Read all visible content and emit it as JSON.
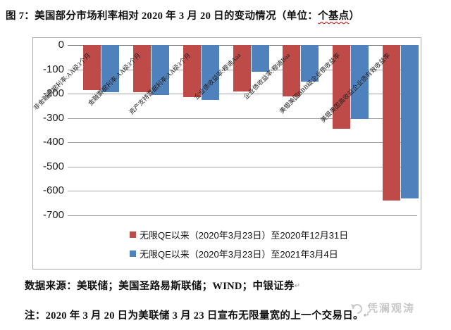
{
  "title": {
    "main": "图 7：美国部分市场利率相对 2020 年 3 月 20 日的变动情况（单位：",
    "unit": "个基点",
    "close": "）"
  },
  "chart_data": {
    "type": "bar",
    "categories": [
      "非金融票据利率:AA级3个月",
      "金融票据利率:AA级3个月",
      "资产支持票据利率:AA级3个月",
      "企业债收益率:穆迪Aaa",
      "企业债收益率:穆迪Baa",
      "美银美国BBB级企业债收益率",
      "美银美国高收益企业债有效收益率"
    ],
    "series": [
      {
        "name": "无限QE以来（2020年3月23日）至2020年12月31日",
        "color": "#be4b48",
        "values": [
          -185,
          -195,
          -215,
          -190,
          -210,
          -345,
          -640
        ]
      },
      {
        "name": "无限QE以来（2020年3月23日）至2021年3月4日",
        "color": "#4f81bd",
        "values": [
          -195,
          -205,
          -225,
          -110,
          -150,
          -305,
          -630
        ]
      }
    ],
    "title": "美国部分市场利率相对2020年3月20日的变动情况",
    "xlabel": "",
    "ylabel": "",
    "unit": "个基点",
    "ylim": [
      -700,
      0
    ],
    "yticks": [
      0,
      -100,
      -200,
      -300,
      -400,
      -500,
      -600,
      -700
    ],
    "grid": true,
    "legend_position": "bottom-inside"
  },
  "source": "数据来源：美联储；美国圣路易斯联储；WIND；中银证券",
  "note": "注：2020 年 3 月 20 日为美联储 3 月 23 日宣布无限量宽的上一个交易日。",
  "marks": {
    "paragraph": "↵"
  },
  "watermark": "凭澜观涛",
  "colors": {
    "bar_red": "#be4b48",
    "bar_blue": "#4f81bd",
    "grid": "#a4a4a4",
    "squiggle": "#d40000",
    "watermark": "#c6c6c6"
  }
}
